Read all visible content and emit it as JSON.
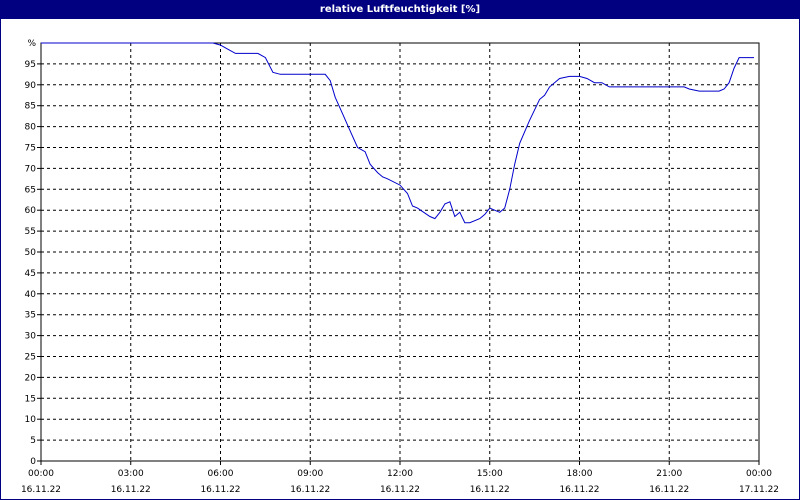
{
  "window": {
    "title": "relative Luftfeuchtigkeit [%]"
  },
  "colors": {
    "title_bar": "#000080",
    "line": "#0000cc",
    "grid": "#000000",
    "background": "#ffffff"
  },
  "chart_data": {
    "type": "line",
    "title": "relative Luftfeuchtigkeit [%]",
    "xlabel": "",
    "ylabel": "",
    "unit_label": "%",
    "ylim": [
      0,
      100
    ],
    "xlim": [
      "16.11.22 00:00",
      "17.11.22 00:00"
    ],
    "y_ticks": [
      0,
      5,
      10,
      15,
      20,
      25,
      30,
      35,
      40,
      45,
      50,
      55,
      60,
      65,
      70,
      75,
      80,
      85,
      90,
      95
    ],
    "x_ticks": [
      {
        "time": "00:00",
        "date": "16.11.22"
      },
      {
        "time": "03:00",
        "date": "16.11.22"
      },
      {
        "time": "06:00",
        "date": "16.11.22"
      },
      {
        "time": "09:00",
        "date": "16.11.22"
      },
      {
        "time": "12:00",
        "date": "16.11.22"
      },
      {
        "time": "15:00",
        "date": "16.11.22"
      },
      {
        "time": "18:00",
        "date": "16.11.22"
      },
      {
        "time": "21:00",
        "date": "16.11.22"
      },
      {
        "time": "00:00",
        "date": "17.11.22"
      }
    ],
    "grid": true,
    "series": [
      {
        "x": [
          "00:00",
          "05:45",
          "06:00",
          "06:15",
          "06:30",
          "07:15",
          "07:30",
          "07:45",
          "08:00",
          "09:00",
          "09:30",
          "09:40",
          "09:50",
          "10:05",
          "10:20",
          "10:35",
          "10:50",
          "11:00",
          "11:15",
          "11:25",
          "11:35",
          "12:00",
          "12:15",
          "12:25",
          "12:35",
          "13:00",
          "13:10",
          "13:20",
          "13:30",
          "13:40",
          "13:50",
          "14:00",
          "14:10",
          "14:20",
          "14:40",
          "14:50",
          "15:00",
          "15:10",
          "15:20",
          "15:30",
          "15:40",
          "15:50",
          "16:00",
          "16:20",
          "16:40",
          "16:50",
          "17:00",
          "17:20",
          "17:40",
          "18:00",
          "18:15",
          "18:30",
          "18:45",
          "19:00",
          "19:30",
          "20:00",
          "20:30",
          "21:00",
          "21:30",
          "21:40",
          "22:00",
          "22:15",
          "22:30",
          "22:40",
          "22:50",
          "23:00",
          "23:10",
          "23:20",
          "23:30",
          "23:40",
          "23:50"
        ],
        "values": [
          100,
          100,
          99.5,
          98.5,
          97.5,
          97.5,
          96.5,
          93,
          92.5,
          92.5,
          92.5,
          91,
          87,
          83,
          79,
          75,
          74,
          71,
          69,
          68,
          67.5,
          66,
          64,
          61,
          60.5,
          58.5,
          58,
          59.5,
          61.5,
          62,
          58.5,
          59.5,
          57,
          57,
          58,
          59,
          60.5,
          60,
          59.5,
          60.5,
          65,
          71,
          76,
          81.5,
          86.5,
          87.5,
          89.5,
          91.5,
          92,
          92,
          91.5,
          90.5,
          90.5,
          89.5,
          89.5,
          89.5,
          89.5,
          89.5,
          89.5,
          89,
          88.5,
          88.5,
          88.5,
          88.5,
          89,
          90.5,
          94,
          96.5,
          96.5,
          96.5,
          96.5
        ]
      }
    ]
  }
}
